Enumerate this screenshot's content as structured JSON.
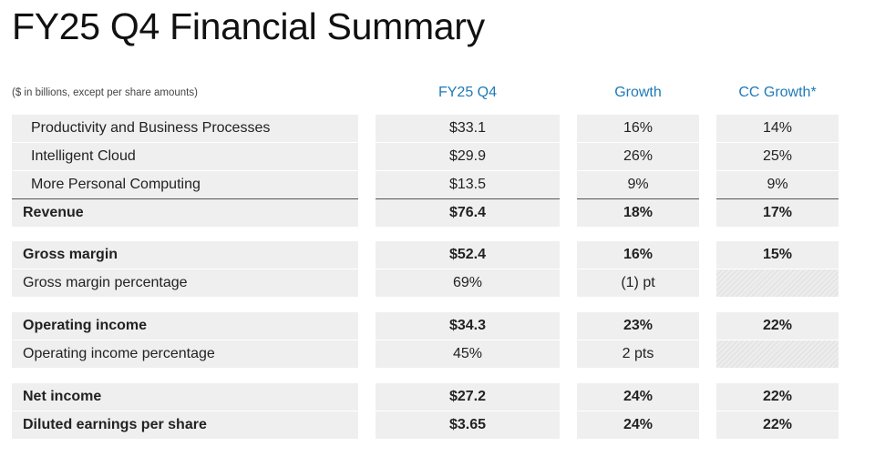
{
  "title": "FY25 Q4 Financial Summary",
  "units_note": "($ in billions, except per share amounts)",
  "columns": {
    "q4": "FY25 Q4",
    "growth": "Growth",
    "cc_growth": "CC Growth*"
  },
  "colors": {
    "header_accent": "#1f7ab8",
    "cell_background": "#efefef"
  },
  "rows": [
    {
      "label": "Productivity and Business Processes",
      "q4": "$33.1",
      "growth": "16%",
      "cc": "14%"
    },
    {
      "label": "Intelligent Cloud",
      "q4": "$29.9",
      "growth": "26%",
      "cc": "25%"
    },
    {
      "label": "More Personal Computing",
      "q4": "$13.5",
      "growth": "9%",
      "cc": "9%"
    },
    {
      "label": "Revenue",
      "q4": "$76.4",
      "growth": "18%",
      "cc": "17%"
    },
    {
      "label": "Gross margin",
      "q4": "$52.4",
      "growth": "16%",
      "cc": "15%"
    },
    {
      "label": "Gross margin percentage",
      "q4": "69%",
      "growth": "(1) pt",
      "cc": ""
    },
    {
      "label": "Operating income",
      "q4": "$34.3",
      "growth": "23%",
      "cc": "22%"
    },
    {
      "label": "Operating income percentage",
      "q4": "45%",
      "growth": "2 pts",
      "cc": ""
    },
    {
      "label": "Net income",
      "q4": "$27.2",
      "growth": "24%",
      "cc": "22%"
    },
    {
      "label": "Diluted earnings per share",
      "q4": "$3.65",
      "growth": "24%",
      "cc": "22%"
    }
  ]
}
